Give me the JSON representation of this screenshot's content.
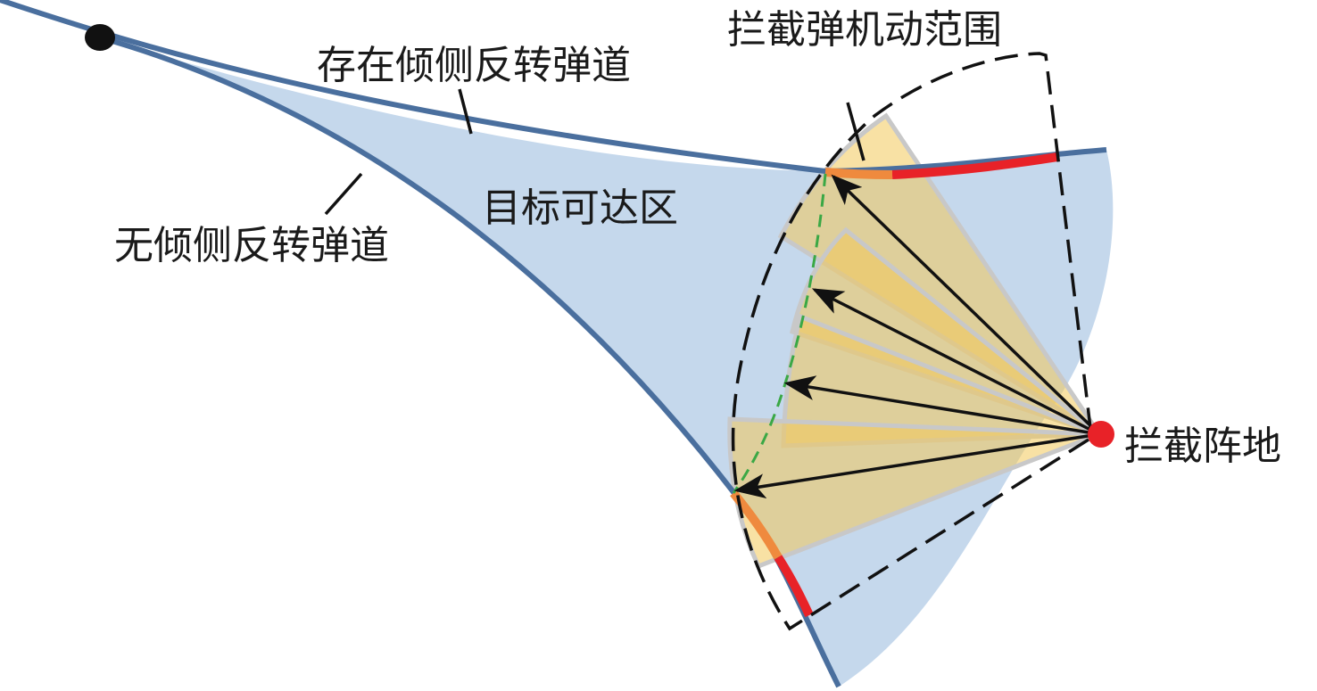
{
  "labels": {
    "maneuver_range": "拦截弹机动范围",
    "with_bank_reversal": "存在倾侧反转弹道",
    "reachable_region": "目标可达区",
    "without_bank_reversal": "无倾侧反转弹道",
    "intercept_site": "拦截阵地"
  },
  "colors": {
    "trajectory": "#4a6f9e",
    "reachable_fill": "#c5d8ec",
    "wedge_fill": "#f2c85a",
    "wedge_edge": "#c8c8c8",
    "intercept_segment": "#e82228",
    "overlap_segment": "#ef8a3e",
    "green_boundary": "#3aa845",
    "site_marker": "#e82228"
  }
}
